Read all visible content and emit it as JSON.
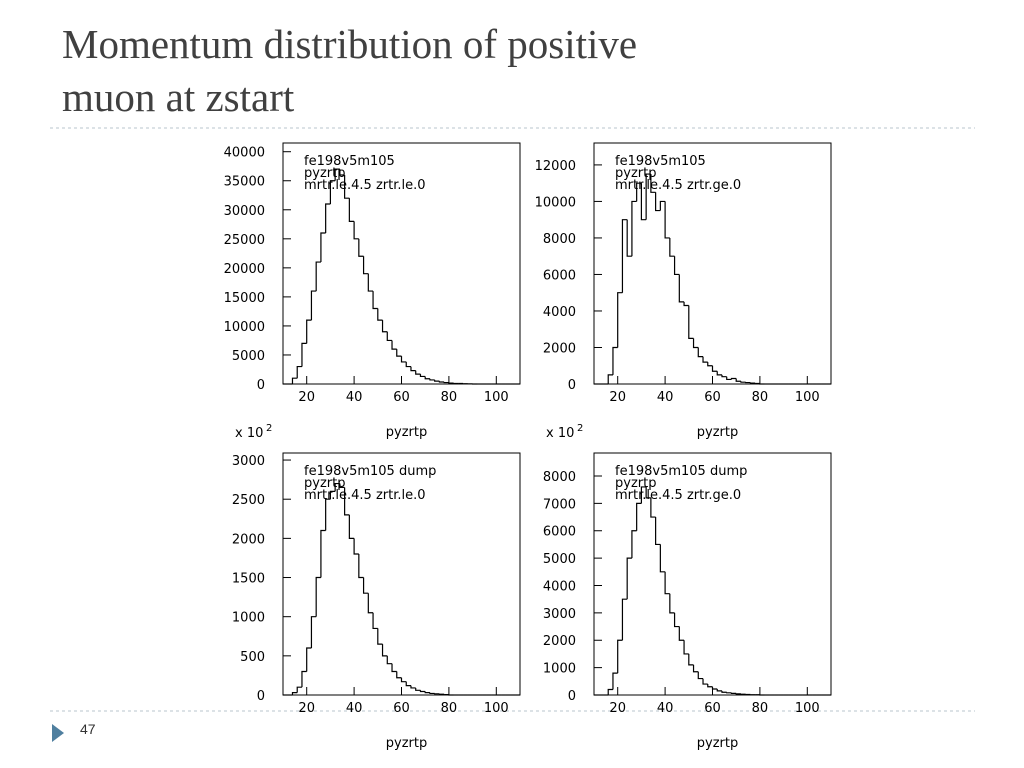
{
  "slide": {
    "title_lines": [
      "Momentum distribution of positive",
      "muon at zstart"
    ],
    "page_number": "47"
  },
  "chart_data": [
    {
      "type": "histogram",
      "labels": [
        "fe198v5m105",
        "pyzrtp",
        "mrtr.le.4.5 zrtr.le.0"
      ],
      "x_label": "pyzrtp",
      "bins": [
        10,
        12,
        14,
        16,
        18,
        20,
        22,
        24,
        26,
        28,
        30,
        32,
        34,
        36,
        38,
        40,
        42,
        44,
        46,
        48,
        50,
        52,
        54,
        56,
        58,
        60,
        62,
        64,
        66,
        68,
        70,
        72,
        74,
        76,
        78,
        80,
        82,
        84,
        86,
        88,
        90,
        92,
        94,
        96,
        98,
        100,
        102,
        104,
        106,
        108,
        110
      ],
      "values": [
        0,
        0,
        1000,
        3000,
        7000,
        11000,
        16000,
        21000,
        26000,
        31000,
        35000,
        37000,
        36000,
        32000,
        28000,
        25000,
        22000,
        19000,
        16000,
        13000,
        11000,
        9000,
        7500,
        6000,
        4800,
        3800,
        3000,
        2300,
        1700,
        1300,
        900,
        700,
        500,
        350,
        250,
        150,
        100,
        80,
        50,
        30,
        0,
        0,
        0,
        0,
        0,
        0,
        0,
        0,
        0,
        0
      ],
      "xlim": [
        10,
        110
      ],
      "xticks": [
        20,
        40,
        60,
        80,
        100
      ],
      "ylim": [
        0,
        41500
      ],
      "yticks": [
        0,
        5000,
        10000,
        15000,
        20000,
        25000,
        30000,
        35000,
        40000
      ],
      "color": "#000000"
    },
    {
      "type": "histogram",
      "labels": [
        "fe198v5m105",
        "pyzrtp",
        "mrtr.le.4.5 zrtr.ge.0"
      ],
      "x_label": "pyzrtp",
      "bins": [
        10,
        12,
        14,
        16,
        18,
        20,
        22,
        24,
        26,
        28,
        30,
        32,
        34,
        36,
        38,
        40,
        42,
        44,
        46,
        48,
        50,
        52,
        54,
        56,
        58,
        60,
        62,
        64,
        66,
        68,
        70,
        72,
        74,
        76,
        78,
        80,
        82,
        84,
        86,
        88,
        90,
        92,
        94,
        96,
        98,
        100,
        102,
        104,
        106,
        108,
        110
      ],
      "values": [
        0,
        0,
        0,
        500,
        2000,
        5000,
        9000,
        7000,
        10000,
        11000,
        9000,
        11500,
        10500,
        9500,
        10000,
        8000,
        7000,
        6000,
        4500,
        4300,
        2500,
        2000,
        1500,
        1200,
        1000,
        700,
        500,
        400,
        250,
        300,
        150,
        100,
        80,
        50,
        30,
        0,
        0,
        0,
        0,
        0,
        0,
        0,
        0,
        0,
        0,
        0,
        0,
        0,
        0,
        0
      ],
      "xlim": [
        10,
        110
      ],
      "xticks": [
        20,
        40,
        60,
        80,
        100
      ],
      "ylim": [
        0,
        13200
      ],
      "yticks": [
        0,
        2000,
        4000,
        6000,
        8000,
        10000,
        12000
      ],
      "color": "#000000"
    },
    {
      "type": "histogram",
      "labels": [
        "fe198v5m105 dump",
        "pyzrtp",
        "mrtr.le.4.5 zrtr.le.0"
      ],
      "x_label": "pyzrtp",
      "multiplier": "x 10",
      "multiplier_exp": "2",
      "bins": [
        10,
        12,
        14,
        16,
        18,
        20,
        22,
        24,
        26,
        28,
        30,
        32,
        34,
        36,
        38,
        40,
        42,
        44,
        46,
        48,
        50,
        52,
        54,
        56,
        58,
        60,
        62,
        64,
        66,
        68,
        70,
        72,
        74,
        76,
        78,
        80,
        82,
        84,
        86,
        88,
        90,
        92,
        94,
        96,
        98,
        100,
        102,
        104,
        106,
        108,
        110
      ],
      "values": [
        0,
        0,
        30,
        100,
        300,
        600,
        1000,
        1500,
        2100,
        2500,
        2600,
        2700,
        2650,
        2300,
        2000,
        1800,
        1500,
        1300,
        1050,
        850,
        650,
        500,
        400,
        300,
        220,
        170,
        120,
        90,
        60,
        45,
        30,
        20,
        15,
        10,
        5,
        0,
        0,
        0,
        0,
        0,
        0,
        0,
        0,
        0,
        0,
        0,
        0,
        0,
        0,
        0
      ],
      "xlim": [
        10,
        110
      ],
      "xticks": [
        20,
        40,
        60,
        80,
        100
      ],
      "ylim": [
        0,
        3090
      ],
      "yticks": [
        0,
        500,
        1000,
        1500,
        2000,
        2500,
        3000
      ],
      "color": "#000000"
    },
    {
      "type": "histogram",
      "labels": [
        "fe198v5m105 dump",
        "pyzrtp",
        "mrtr.le.4.5 zrtr.ge.0"
      ],
      "x_label": "pyzrtp",
      "multiplier": "x 10",
      "multiplier_exp": "2",
      "bins": [
        10,
        12,
        14,
        16,
        18,
        20,
        22,
        24,
        26,
        28,
        30,
        32,
        34,
        36,
        38,
        40,
        42,
        44,
        46,
        48,
        50,
        52,
        54,
        56,
        58,
        60,
        62,
        64,
        66,
        68,
        70,
        72,
        74,
        76,
        78,
        80,
        82,
        84,
        86,
        88,
        90,
        92,
        94,
        96,
        98,
        100,
        102,
        104,
        106,
        108,
        110
      ],
      "values": [
        0,
        0,
        0,
        200,
        800,
        2000,
        3500,
        5000,
        6000,
        7000,
        7600,
        7200,
        6500,
        5500,
        4500,
        3700,
        3000,
        2500,
        2000,
        1500,
        1100,
        850,
        600,
        400,
        300,
        220,
        150,
        100,
        80,
        60,
        40,
        30,
        20,
        10,
        10,
        0,
        0,
        0,
        0,
        0,
        0,
        0,
        0,
        0,
        0,
        0,
        0,
        0,
        0,
        0
      ],
      "xlim": [
        10,
        110
      ],
      "xticks": [
        20,
        40,
        60,
        80,
        100
      ],
      "ylim": [
        0,
        8840
      ],
      "yticks": [
        0,
        1000,
        2000,
        3000,
        4000,
        5000,
        6000,
        7000,
        8000
      ],
      "color": "#000000"
    }
  ]
}
